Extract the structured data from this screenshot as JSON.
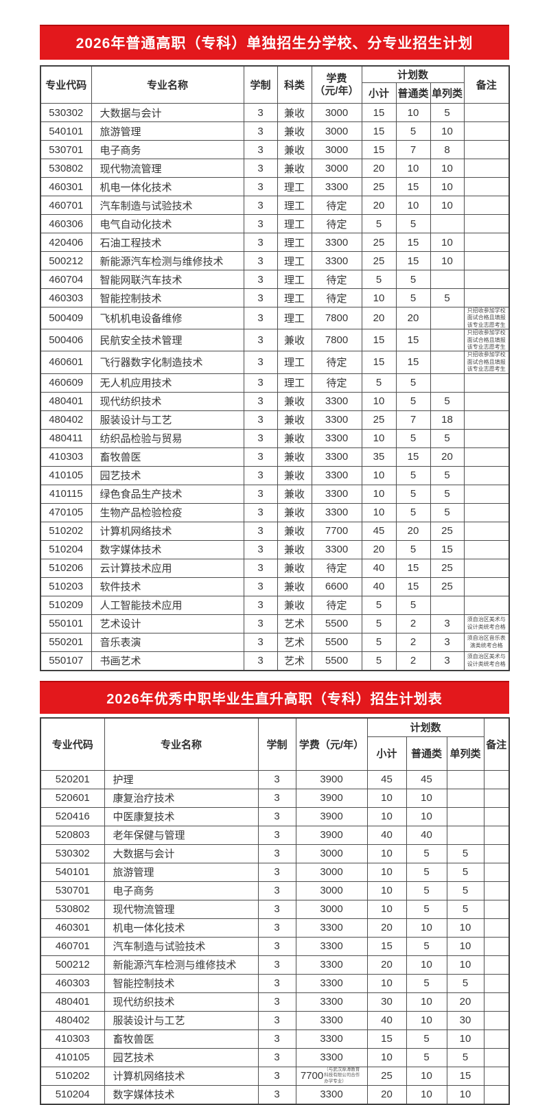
{
  "page": {
    "banner_color": "#e3181c",
    "border_color": "#4d4d4d",
    "text_color": "#353535"
  },
  "table1": {
    "title": "2026年普通高职（专科）单独招生分学校、分专业招生计划",
    "headers": {
      "code": "专业代码",
      "name": "专业名称",
      "years": "学制",
      "category": "科类",
      "fee_line1": "学费",
      "fee_line2": "（元/年）",
      "plan_group": "计划数",
      "subtotal": "小计",
      "general": "普通类",
      "separate": "单列类",
      "remark": "备注"
    },
    "rows": [
      {
        "code": "530302",
        "name": "大数据与会计",
        "years": "3",
        "category": "兼收",
        "fee": "3000",
        "total": "15",
        "general": "10",
        "separate": "5",
        "remark": ""
      },
      {
        "code": "540101",
        "name": "旅游管理",
        "years": "3",
        "category": "兼收",
        "fee": "3000",
        "total": "15",
        "general": "5",
        "separate": "10",
        "remark": ""
      },
      {
        "code": "530701",
        "name": "电子商务",
        "years": "3",
        "category": "兼收",
        "fee": "3000",
        "total": "15",
        "general": "7",
        "separate": "8",
        "remark": ""
      },
      {
        "code": "530802",
        "name": "现代物流管理",
        "years": "3",
        "category": "兼收",
        "fee": "3000",
        "total": "20",
        "general": "10",
        "separate": "10",
        "remark": ""
      },
      {
        "code": "460301",
        "name": "机电一体化技术",
        "years": "3",
        "category": "理工",
        "fee": "3300",
        "total": "25",
        "general": "15",
        "separate": "10",
        "remark": ""
      },
      {
        "code": "460701",
        "name": "汽车制造与试验技术",
        "years": "3",
        "category": "理工",
        "fee": "待定",
        "total": "20",
        "general": "10",
        "separate": "10",
        "remark": ""
      },
      {
        "code": "460306",
        "name": "电气自动化技术",
        "years": "3",
        "category": "理工",
        "fee": "待定",
        "total": "5",
        "general": "5",
        "separate": "",
        "remark": ""
      },
      {
        "code": "420406",
        "name": "石油工程技术",
        "years": "3",
        "category": "理工",
        "fee": "3300",
        "total": "25",
        "general": "15",
        "separate": "10",
        "remark": ""
      },
      {
        "code": "500212",
        "name": "新能源汽车检测与维修技术",
        "years": "3",
        "category": "理工",
        "fee": "3300",
        "total": "25",
        "general": "15",
        "separate": "10",
        "remark": ""
      },
      {
        "code": "460704",
        "name": "智能网联汽车技术",
        "years": "3",
        "category": "理工",
        "fee": "待定",
        "total": "5",
        "general": "5",
        "separate": "",
        "remark": ""
      },
      {
        "code": "460303",
        "name": "智能控制技术",
        "years": "3",
        "category": "理工",
        "fee": "待定",
        "total": "10",
        "general": "5",
        "separate": "5",
        "remark": ""
      },
      {
        "code": "500409",
        "name": "飞机机电设备维修",
        "years": "3",
        "category": "理工",
        "fee": "7800",
        "total": "20",
        "general": "20",
        "separate": "",
        "remark": "只招收参加学校面试合格且填报该专业志愿考生"
      },
      {
        "code": "500406",
        "name": "民航安全技术管理",
        "years": "3",
        "category": "兼收",
        "fee": "7800",
        "total": "15",
        "general": "15",
        "separate": "",
        "remark": "只招收参加学校面试合格且填报该专业志愿考生"
      },
      {
        "code": "460601",
        "name": "飞行器数字化制造技术",
        "years": "3",
        "category": "理工",
        "fee": "待定",
        "total": "15",
        "general": "15",
        "separate": "",
        "remark": "只招收参加学校面试合格且填报该专业志愿考生"
      },
      {
        "code": "460609",
        "name": "无人机应用技术",
        "years": "3",
        "category": "理工",
        "fee": "待定",
        "total": "5",
        "general": "5",
        "separate": "",
        "remark": ""
      },
      {
        "code": "480401",
        "name": "现代纺织技术",
        "years": "3",
        "category": "兼收",
        "fee": "3300",
        "total": "10",
        "general": "5",
        "separate": "5",
        "remark": ""
      },
      {
        "code": "480402",
        "name": "服装设计与工艺",
        "years": "3",
        "category": "兼收",
        "fee": "3300",
        "total": "25",
        "general": "7",
        "separate": "18",
        "remark": ""
      },
      {
        "code": "480411",
        "name": "纺织品检验与贸易",
        "years": "3",
        "category": "兼收",
        "fee": "3300",
        "total": "10",
        "general": "5",
        "separate": "5",
        "remark": ""
      },
      {
        "code": "410303",
        "name": "畜牧兽医",
        "years": "3",
        "category": "兼收",
        "fee": "3300",
        "total": "35",
        "general": "15",
        "separate": "20",
        "remark": ""
      },
      {
        "code": "410105",
        "name": "园艺技术",
        "years": "3",
        "category": "兼收",
        "fee": "3300",
        "total": "10",
        "general": "5",
        "separate": "5",
        "remark": ""
      },
      {
        "code": "410115",
        "name": "绿色食品生产技术",
        "years": "3",
        "category": "兼收",
        "fee": "3300",
        "total": "10",
        "general": "5",
        "separate": "5",
        "remark": ""
      },
      {
        "code": "470105",
        "name": "生物产品检验检疫",
        "years": "3",
        "category": "兼收",
        "fee": "3300",
        "total": "10",
        "general": "5",
        "separate": "5",
        "remark": ""
      },
      {
        "code": "510202",
        "name": "计算机网络技术",
        "years": "3",
        "category": "兼收",
        "fee": "7700",
        "total": "45",
        "general": "20",
        "separate": "25",
        "remark": ""
      },
      {
        "code": "510204",
        "name": "数字媒体技术",
        "years": "3",
        "category": "兼收",
        "fee": "3300",
        "total": "20",
        "general": "5",
        "separate": "15",
        "remark": ""
      },
      {
        "code": "510206",
        "name": "云计算技术应用",
        "years": "3",
        "category": "兼收",
        "fee": "待定",
        "total": "40",
        "general": "15",
        "separate": "25",
        "remark": ""
      },
      {
        "code": "510203",
        "name": "软件技术",
        "years": "3",
        "category": "兼收",
        "fee": "6600",
        "total": "40",
        "general": "15",
        "separate": "25",
        "remark": ""
      },
      {
        "code": "510209",
        "name": "人工智能技术应用",
        "years": "3",
        "category": "兼收",
        "fee": "待定",
        "total": "5",
        "general": "5",
        "separate": "",
        "remark": ""
      },
      {
        "code": "550101",
        "name": "艺术设计",
        "years": "3",
        "category": "艺术",
        "fee": "5500",
        "total": "5",
        "general": "2",
        "separate": "3",
        "remark": "须自治区美术与设计类统考合格"
      },
      {
        "code": "550201",
        "name": "音乐表演",
        "years": "3",
        "category": "艺术",
        "fee": "5500",
        "total": "5",
        "general": "2",
        "separate": "3",
        "remark": "须自治区音乐表演类统考合格"
      },
      {
        "code": "550107",
        "name": "书画艺术",
        "years": "3",
        "category": "艺术",
        "fee": "5500",
        "total": "5",
        "general": "2",
        "separate": "3",
        "remark": "须自治区美术与设计类统考合格"
      }
    ]
  },
  "table2": {
    "title": "2026年优秀中职毕业生直升高职（专科）招生计划表",
    "headers": {
      "code": "专业代码",
      "name": "专业名称",
      "years": "学制",
      "fee": "学费（元/年）",
      "plan_group": "计划数",
      "subtotal": "小计",
      "general": "普通类",
      "separate": "单列类",
      "remark": "备注"
    },
    "rows": [
      {
        "code": "520201",
        "name": "护理",
        "years": "3",
        "fee": "3900",
        "total": "45",
        "general": "45",
        "separate": "",
        "remark": ""
      },
      {
        "code": "520601",
        "name": "康复治疗技术",
        "years": "3",
        "fee": "3900",
        "total": "10",
        "general": "10",
        "separate": "",
        "remark": ""
      },
      {
        "code": "520416",
        "name": "中医康复技术",
        "years": "3",
        "fee": "3900",
        "total": "10",
        "general": "10",
        "separate": "",
        "remark": ""
      },
      {
        "code": "520803",
        "name": "老年保健与管理",
        "years": "3",
        "fee": "3900",
        "total": "40",
        "general": "40",
        "separate": "",
        "remark": ""
      },
      {
        "code": "530302",
        "name": "大数据与会计",
        "years": "3",
        "fee": "3000",
        "total": "10",
        "general": "5",
        "separate": "5",
        "remark": ""
      },
      {
        "code": "540101",
        "name": "旅游管理",
        "years": "3",
        "fee": "3000",
        "total": "10",
        "general": "5",
        "separate": "5",
        "remark": ""
      },
      {
        "code": "530701",
        "name": "电子商务",
        "years": "3",
        "fee": "3000",
        "total": "10",
        "general": "5",
        "separate": "5",
        "remark": ""
      },
      {
        "code": "530802",
        "name": "现代物流管理",
        "years": "3",
        "fee": "3000",
        "total": "10",
        "general": "5",
        "separate": "5",
        "remark": ""
      },
      {
        "code": "460301",
        "name": "机电一体化技术",
        "years": "3",
        "fee": "3300",
        "total": "20",
        "general": "10",
        "separate": "10",
        "remark": ""
      },
      {
        "code": "460701",
        "name": "汽车制造与试验技术",
        "years": "3",
        "fee": "3300",
        "total": "15",
        "general": "5",
        "separate": "10",
        "remark": ""
      },
      {
        "code": "500212",
        "name": "新能源汽车检测与维修技术",
        "years": "3",
        "fee": "3300",
        "total": "20",
        "general": "10",
        "separate": "10",
        "remark": ""
      },
      {
        "code": "460303",
        "name": "智能控制技术",
        "years": "3",
        "fee": "3300",
        "total": "10",
        "general": "5",
        "separate": "5",
        "remark": ""
      },
      {
        "code": "480401",
        "name": "现代纺织技术",
        "years": "3",
        "fee": "3300",
        "total": "30",
        "general": "10",
        "separate": "20",
        "remark": ""
      },
      {
        "code": "480402",
        "name": "服装设计与工艺",
        "years": "3",
        "fee": "3300",
        "total": "40",
        "general": "10",
        "separate": "30",
        "remark": ""
      },
      {
        "code": "410303",
        "name": "畜牧兽医",
        "years": "3",
        "fee": "3300",
        "total": "15",
        "general": "5",
        "separate": "10",
        "remark": ""
      },
      {
        "code": "410105",
        "name": "园艺技术",
        "years": "3",
        "fee": "3300",
        "total": "10",
        "general": "5",
        "separate": "5",
        "remark": ""
      },
      {
        "code": "510202",
        "name": "计算机网络技术",
        "years": "3",
        "fee": {
          "main": "7700",
          "note": "（与武汉厚溥教育科技有限公司合作办学专业）"
        },
        "total": "25",
        "general": "10",
        "separate": "15",
        "remark": ""
      },
      {
        "code": "510204",
        "name": "数字媒体技术",
        "years": "3",
        "fee": "3300",
        "total": "20",
        "general": "10",
        "separate": "10",
        "remark": ""
      }
    ]
  }
}
